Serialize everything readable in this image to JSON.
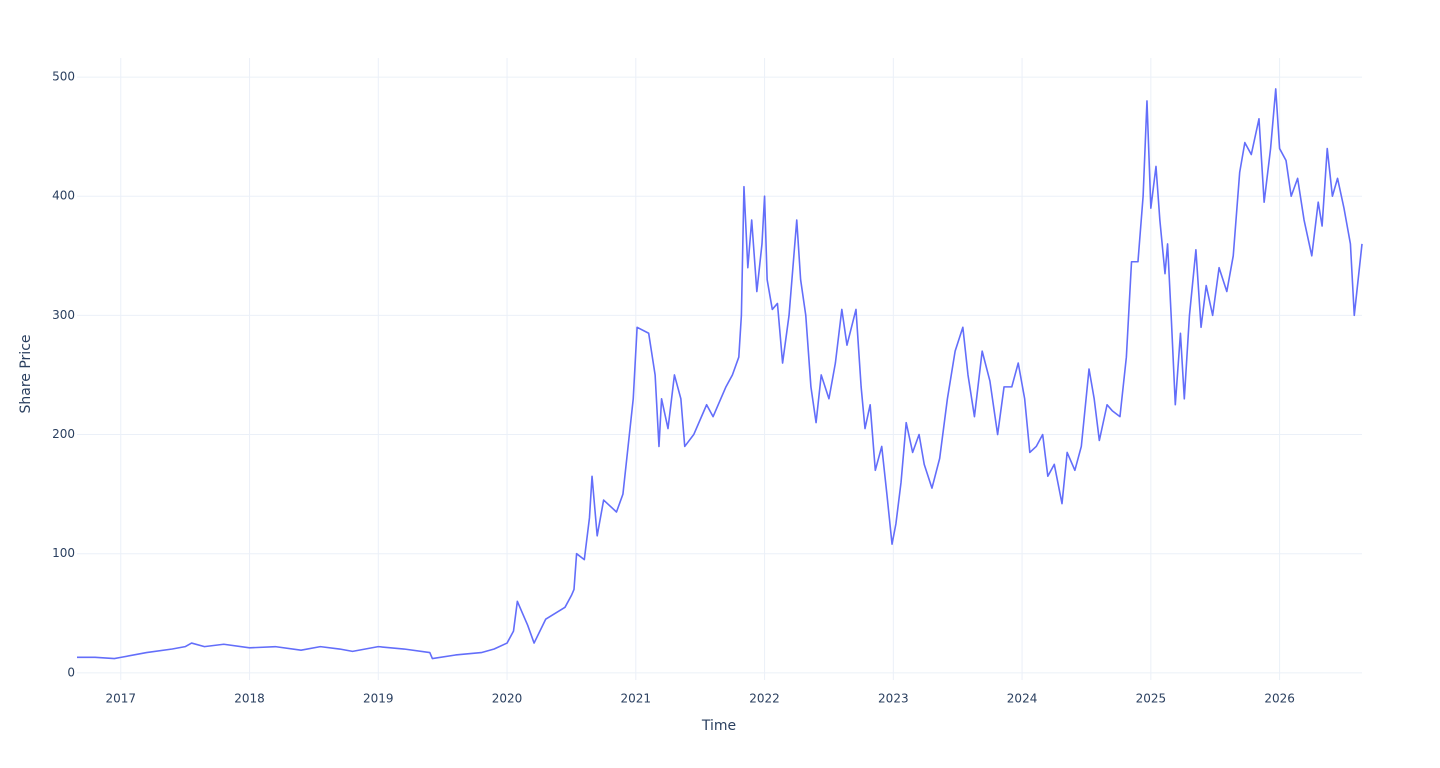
{
  "chart_data": {
    "type": "line",
    "x_label": "Time",
    "y_label": "Share Price",
    "color": "#636efa",
    "grid": true,
    "xlim": [
      2016.66,
      2026.64
    ],
    "ylim": [
      -6,
      516
    ],
    "xticks": [
      2017,
      2018,
      2019,
      2020,
      2021,
      2022,
      2023,
      2024,
      2025,
      2026
    ],
    "yticks": [
      0,
      100,
      200,
      300,
      400,
      500
    ],
    "x": [
      2016.66,
      2016.8,
      2016.95,
      2017.0,
      2017.2,
      2017.4,
      2017.5,
      2017.55,
      2017.65,
      2017.8,
      2018.0,
      2018.2,
      2018.4,
      2018.55,
      2018.7,
      2018.8,
      2019.0,
      2019.2,
      2019.4,
      2019.42,
      2019.6,
      2019.8,
      2019.9,
      2020.0,
      2020.05,
      2020.08,
      2020.12,
      2020.16,
      2020.21,
      2020.3,
      2020.45,
      2020.5,
      2020.52,
      2020.54,
      2020.6,
      2020.64,
      2020.66,
      2020.7,
      2020.75,
      2020.85,
      2020.9,
      2020.95,
      2020.98,
      2021.01,
      2021.1,
      2021.15,
      2021.18,
      2021.2,
      2021.25,
      2021.3,
      2021.35,
      2021.38,
      2021.45,
      2021.55,
      2021.6,
      2021.7,
      2021.75,
      2021.8,
      2021.82,
      2021.84,
      2021.87,
      2021.9,
      2021.94,
      2021.98,
      2022.0,
      2022.02,
      2022.06,
      2022.1,
      2022.14,
      2022.19,
      2022.25,
      2022.28,
      2022.32,
      2022.36,
      2022.4,
      2022.44,
      2022.5,
      2022.55,
      2022.6,
      2022.64,
      2022.71,
      2022.75,
      2022.78,
      2022.82,
      2022.86,
      2022.91,
      2022.95,
      2022.99,
      2023.02,
      2023.06,
      2023.1,
      2023.15,
      2023.2,
      2023.24,
      2023.3,
      2023.36,
      2023.42,
      2023.48,
      2023.54,
      2023.58,
      2023.63,
      2023.69,
      2023.75,
      2023.81,
      2023.86,
      2023.92,
      2023.97,
      2024.02,
      2024.06,
      2024.11,
      2024.16,
      2024.2,
      2024.25,
      2024.31,
      2024.35,
      2024.41,
      2024.46,
      2024.52,
      2024.56,
      2024.6,
      2024.66,
      2024.7,
      2024.76,
      2024.81,
      2024.85,
      2024.9,
      2024.94,
      2024.97,
      2025.0,
      2025.04,
      2025.07,
      2025.11,
      2025.13,
      2025.16,
      2025.19,
      2025.23,
      2025.26,
      2025.3,
      2025.35,
      2025.39,
      2025.43,
      2025.48,
      2025.53,
      2025.59,
      2025.64,
      2025.69,
      2025.73,
      2025.78,
      2025.84,
      2025.88,
      2025.93,
      2025.97,
      2026.0,
      2026.05,
      2026.09,
      2026.14,
      2026.19,
      2026.25,
      2026.3,
      2026.33,
      2026.37,
      2026.41,
      2026.45,
      2026.5,
      2026.55,
      2026.58,
      2026.61,
      2026.64
    ],
    "values": [
      13,
      13,
      12,
      13,
      17,
      20,
      22,
      25,
      22,
      24,
      21,
      22,
      19,
      22,
      20,
      18,
      22,
      20,
      17,
      12,
      15,
      17,
      20,
      25,
      35,
      60,
      50,
      40,
      25,
      45,
      55,
      65,
      70,
      100,
      95,
      130,
      165,
      115,
      145,
      135,
      150,
      200,
      230,
      290,
      285,
      250,
      190,
      230,
      205,
      250,
      230,
      190,
      200,
      225,
      215,
      240,
      250,
      265,
      300,
      408,
      340,
      380,
      320,
      360,
      400,
      330,
      305,
      310,
      260,
      300,
      380,
      330,
      300,
      240,
      210,
      250,
      230,
      260,
      305,
      275,
      305,
      240,
      205,
      225,
      170,
      190,
      150,
      108,
      125,
      160,
      210,
      185,
      200,
      175,
      155,
      180,
      230,
      270,
      290,
      250,
      215,
      270,
      245,
      200,
      240,
      240,
      260,
      230,
      185,
      190,
      200,
      165,
      175,
      142,
      185,
      170,
      190,
      255,
      230,
      195,
      225,
      220,
      215,
      265,
      345,
      345,
      400,
      480,
      390,
      425,
      380,
      335,
      360,
      295,
      225,
      285,
      230,
      300,
      355,
      290,
      325,
      300,
      340,
      320,
      350,
      420,
      445,
      435,
      465,
      395,
      440,
      490,
      440,
      430,
      400,
      415,
      380,
      350,
      395,
      375,
      440,
      400,
      415,
      390,
      360,
      300,
      330,
      360
    ]
  }
}
